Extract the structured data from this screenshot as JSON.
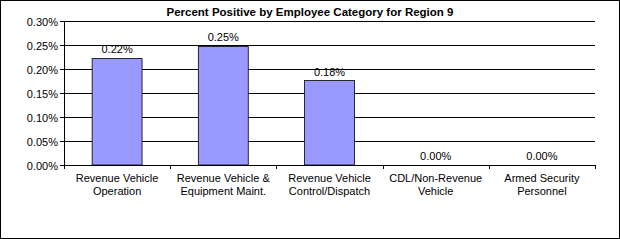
{
  "chart_data": {
    "type": "bar",
    "title": "Percent Positive by Employee Category for Region 9",
    "categories": [
      "Revenue Vehicle Operation",
      "Revenue Vehicle & Equipment Maint.",
      "Revenue Vehicle Control/Dispatch",
      "CDL/Non-Revenue Vehicle",
      "Armed Security Personnel"
    ],
    "values": [
      0.222,
      0.247,
      0.176,
      0,
      0
    ],
    "value_labels": [
      "0.22%",
      "0.25%",
      "0.18%",
      "0.00%",
      "0.00%"
    ],
    "color": "#9999ff",
    "ylim": [
      0,
      0.3
    ],
    "yticks": [
      {
        "value": 0,
        "label": "0.00%"
      },
      {
        "value": 0.05,
        "label": "0.05%"
      },
      {
        "value": 0.1,
        "label": "0.10%"
      },
      {
        "value": 0.15,
        "label": "0.15%"
      },
      {
        "value": 0.2,
        "label": "0.20%"
      },
      {
        "value": 0.25,
        "label": "0.25%"
      },
      {
        "value": 0.3,
        "label": "0.30%"
      }
    ],
    "grid": true,
    "data_labels": true
  }
}
